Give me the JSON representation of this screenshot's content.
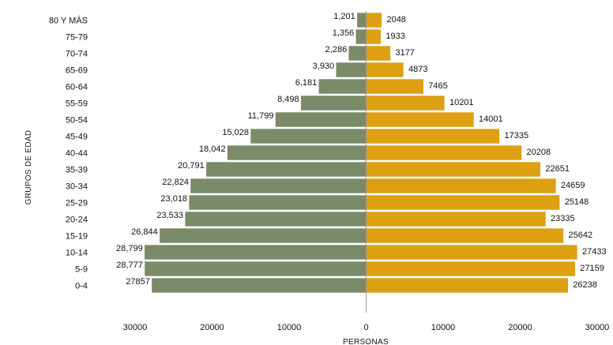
{
  "chart_data": {
    "type": "bar",
    "orientation": "horizontal",
    "layout": "population-pyramid",
    "ylabel": "GRUPOS DE EDAD",
    "xlabel": "PERSONAS",
    "xlim": [
      -30000,
      30000
    ],
    "x_ticks": [
      "30000",
      "20000",
      "10000",
      "0",
      "10000",
      "20000",
      "30000"
    ],
    "categories": [
      "80 Y MÁS",
      "75-79",
      "70-74",
      "65-69",
      "60-64",
      "55-59",
      "50-54",
      "45-49",
      "40-44",
      "35-39",
      "30-34",
      "25-29",
      "20-24",
      "15-19",
      "10-14",
      "5-9",
      "0-4"
    ],
    "series": [
      {
        "color": "#7b8a68",
        "values": [
          1201,
          1356,
          2286,
          3930,
          6181,
          8498,
          11799,
          15028,
          18042,
          20791,
          22824,
          23018,
          23533,
          26844,
          28799,
          28777,
          27857
        ],
        "data_labels": [
          "1,201",
          "1,356",
          "2,286",
          "3,930",
          "6,181",
          "8,498",
          "11,799",
          "15,028",
          "18,042",
          "20,791",
          "22,824",
          "23,018",
          "23,533",
          "26,844",
          "28,799",
          "28,777",
          "27857"
        ]
      },
      {
        "color": "#dca012",
        "values": [
          2048,
          1933,
          3177,
          4873,
          7465,
          10201,
          14001,
          17335,
          20208,
          22651,
          24659,
          25148,
          23335,
          25642,
          27433,
          27159,
          26238
        ],
        "data_labels": [
          "2048",
          "1933",
          "3177",
          "4873",
          "7465",
          "10201",
          "14001",
          "17335",
          "20208",
          "22651",
          "24659",
          "25148",
          "23335",
          "25642",
          "27433",
          "27159",
          "26238"
        ]
      }
    ],
    "grid": false,
    "legend": "none"
  }
}
